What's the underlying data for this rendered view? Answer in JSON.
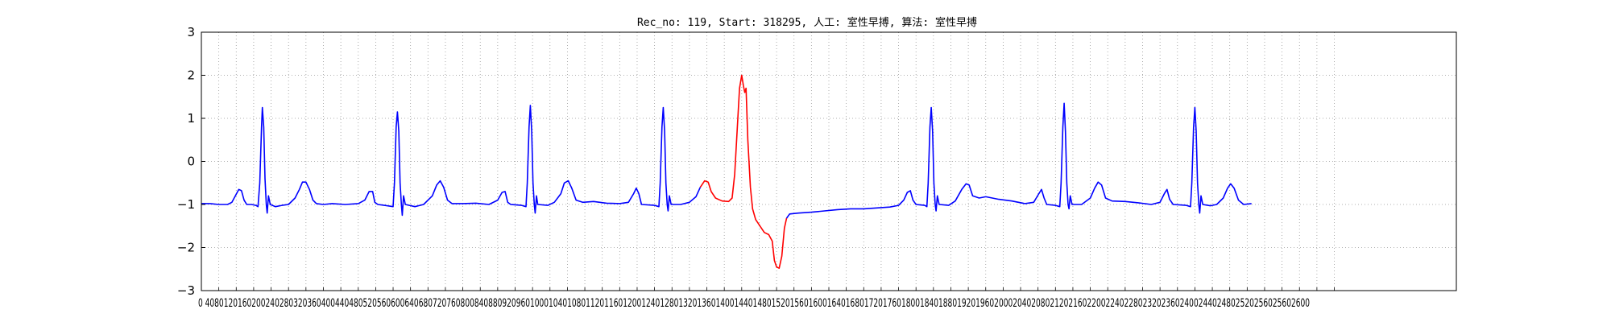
{
  "chart_data": {
    "type": "line",
    "title": "Rec_no: 119, Start: 318295, 人工: 室性早搏, 算法: 室性早搏",
    "xlabel": "",
    "ylabel": "",
    "xlim": [
      0,
      2880
    ],
    "ylim": [
      -3,
      3
    ],
    "grid": true,
    "y_ticks": [
      3,
      2,
      1,
      0,
      -1,
      -2,
      -3
    ],
    "y_tick_labels": [
      "3",
      "2",
      "1",
      "0",
      "−1",
      "−2",
      "−3"
    ],
    "x_tick_step": 40,
    "x_tick_max": 2600,
    "x_tick_labels_text": "0 4080120160200240280320360400440480520560600640680720760800840880920960100010401080112011601200124012801320136014001440148015201560160016401680172017601800184018801920196020002040208021202160220022402280232023602400244024802520256025602600",
    "series": [
      {
        "color": "#0000ff",
        "values": [
          [
            0,
            -0.98
          ],
          [
            20,
            -0.98
          ],
          [
            40,
            -1.0
          ],
          [
            60,
            -1.0
          ],
          [
            70,
            -0.95
          ],
          [
            78,
            -0.8
          ],
          [
            86,
            -0.65
          ],
          [
            92,
            -0.68
          ],
          [
            98,
            -0.9
          ],
          [
            104,
            -1.0
          ],
          [
            115,
            -1.0
          ],
          [
            125,
            -1.02
          ],
          [
            130,
            -1.05
          ],
          [
            134,
            -0.5
          ],
          [
            138,
            0.8
          ],
          [
            140,
            1.25
          ],
          [
            143,
            0.8
          ],
          [
            146,
            -0.4
          ],
          [
            149,
            -1.0
          ],
          [
            151,
            -1.2
          ],
          [
            154,
            -0.8
          ],
          [
            158,
            -1.0
          ],
          [
            170,
            -1.05
          ],
          [
            185,
            -1.02
          ],
          [
            200,
            -1.0
          ],
          [
            215,
            -0.85
          ],
          [
            225,
            -0.65
          ],
          [
            232,
            -0.48
          ],
          [
            240,
            -0.48
          ],
          [
            248,
            -0.65
          ],
          [
            256,
            -0.9
          ],
          [
            264,
            -0.98
          ],
          [
            280,
            -1.0
          ],
          [
            300,
            -0.98
          ],
          [
            330,
            -1.0
          ],
          [
            360,
            -0.98
          ],
          [
            375,
            -0.9
          ],
          [
            385,
            -0.7
          ],
          [
            393,
            -0.7
          ],
          [
            398,
            -0.95
          ],
          [
            405,
            -1.0
          ],
          [
            420,
            -1.02
          ],
          [
            440,
            -1.05
          ],
          [
            443,
            -0.5
          ],
          [
            447,
            0.8
          ],
          [
            450,
            1.15
          ],
          [
            453,
            0.7
          ],
          [
            456,
            -0.5
          ],
          [
            459,
            -1.0
          ],
          [
            461,
            -1.25
          ],
          [
            464,
            -0.8
          ],
          [
            468,
            -1.0
          ],
          [
            490,
            -1.05
          ],
          [
            510,
            -1.0
          ],
          [
            530,
            -0.8
          ],
          [
            540,
            -0.55
          ],
          [
            548,
            -0.45
          ],
          [
            556,
            -0.6
          ],
          [
            565,
            -0.9
          ],
          [
            575,
            -0.98
          ],
          [
            600,
            -0.98
          ],
          [
            630,
            -0.97
          ],
          [
            660,
            -1.0
          ],
          [
            680,
            -0.9
          ],
          [
            690,
            -0.72
          ],
          [
            697,
            -0.7
          ],
          [
            703,
            -0.95
          ],
          [
            710,
            -1.0
          ],
          [
            735,
            -1.02
          ],
          [
            745,
            -1.05
          ],
          [
            748,
            -0.5
          ],
          [
            752,
            0.8
          ],
          [
            755,
            1.3
          ],
          [
            758,
            0.7
          ],
          [
            761,
            -0.5
          ],
          [
            764,
            -1.0
          ],
          [
            766,
            -1.2
          ],
          [
            769,
            -0.8
          ],
          [
            772,
            -1.0
          ],
          [
            795,
            -1.02
          ],
          [
            810,
            -0.95
          ],
          [
            825,
            -0.75
          ],
          [
            833,
            -0.5
          ],
          [
            842,
            -0.45
          ],
          [
            850,
            -0.62
          ],
          [
            860,
            -0.9
          ],
          [
            875,
            -0.95
          ],
          [
            900,
            -0.93
          ],
          [
            930,
            -0.97
          ],
          [
            960,
            -0.98
          ],
          [
            980,
            -0.95
          ],
          [
            992,
            -0.75
          ],
          [
            998,
            -0.62
          ],
          [
            1004,
            -0.75
          ],
          [
            1010,
            -1.0
          ],
          [
            1040,
            -1.02
          ],
          [
            1050,
            -1.05
          ],
          [
            1053,
            -0.5
          ],
          [
            1057,
            0.8
          ],
          [
            1060,
            1.25
          ],
          [
            1063,
            0.7
          ],
          [
            1066,
            -0.5
          ],
          [
            1069,
            -1.0
          ],
          [
            1071,
            -1.15
          ],
          [
            1074,
            -0.8
          ],
          [
            1078,
            -1.0
          ],
          [
            1100,
            -1.0
          ],
          [
            1120,
            -0.95
          ],
          [
            1135,
            -0.82
          ],
          [
            1145,
            -0.6
          ]
        ]
      },
      {
        "color": "#ff0000",
        "values": [
          [
            1145,
            -0.6
          ],
          [
            1155,
            -0.45
          ],
          [
            1163,
            -0.48
          ],
          [
            1170,
            -0.7
          ],
          [
            1180,
            -0.85
          ],
          [
            1195,
            -0.92
          ],
          [
            1210,
            -0.93
          ],
          [
            1218,
            -0.85
          ],
          [
            1224,
            -0.3
          ],
          [
            1230,
            0.8
          ],
          [
            1235,
            1.7
          ],
          [
            1240,
            2.0
          ],
          [
            1244,
            1.75
          ],
          [
            1247,
            1.6
          ],
          [
            1250,
            1.7
          ],
          [
            1254,
            0.5
          ],
          [
            1260,
            -0.6
          ],
          [
            1265,
            -1.1
          ],
          [
            1272,
            -1.35
          ],
          [
            1282,
            -1.5
          ],
          [
            1292,
            -1.65
          ],
          [
            1302,
            -1.7
          ],
          [
            1310,
            -1.85
          ],
          [
            1315,
            -2.3
          ],
          [
            1320,
            -2.45
          ],
          [
            1326,
            -2.48
          ],
          [
            1332,
            -2.2
          ],
          [
            1338,
            -1.55
          ],
          [
            1343,
            -1.32
          ]
        ]
      },
      {
        "color": "#0000ff",
        "values": [
          [
            1343,
            -1.32
          ],
          [
            1350,
            -1.22
          ],
          [
            1370,
            -1.2
          ],
          [
            1400,
            -1.18
          ],
          [
            1430,
            -1.15
          ],
          [
            1460,
            -1.12
          ],
          [
            1490,
            -1.1
          ],
          [
            1520,
            -1.1
          ],
          [
            1550,
            -1.08
          ],
          [
            1580,
            -1.06
          ],
          [
            1600,
            -1.02
          ],
          [
            1612,
            -0.9
          ],
          [
            1620,
            -0.72
          ],
          [
            1627,
            -0.68
          ],
          [
            1633,
            -0.9
          ],
          [
            1640,
            -1.0
          ],
          [
            1660,
            -1.02
          ],
          [
            1665,
            -1.05
          ],
          [
            1668,
            -0.5
          ],
          [
            1672,
            0.8
          ],
          [
            1675,
            1.25
          ],
          [
            1678,
            0.7
          ],
          [
            1681,
            -0.5
          ],
          [
            1684,
            -1.0
          ],
          [
            1686,
            -1.15
          ],
          [
            1689,
            -0.8
          ],
          [
            1693,
            -1.0
          ],
          [
            1715,
            -1.02
          ],
          [
            1730,
            -0.92
          ],
          [
            1745,
            -0.65
          ],
          [
            1755,
            -0.52
          ],
          [
            1762,
            -0.55
          ],
          [
            1770,
            -0.8
          ],
          [
            1785,
            -0.85
          ],
          [
            1800,
            -0.82
          ],
          [
            1830,
            -0.88
          ],
          [
            1860,
            -0.92
          ],
          [
            1890,
            -0.98
          ],
          [
            1910,
            -0.95
          ],
          [
            1922,
            -0.75
          ],
          [
            1928,
            -0.65
          ],
          [
            1934,
            -0.85
          ],
          [
            1940,
            -1.0
          ],
          [
            1960,
            -1.02
          ],
          [
            1970,
            -1.05
          ],
          [
            1973,
            -0.5
          ],
          [
            1977,
            0.8
          ],
          [
            1980,
            1.35
          ],
          [
            1983,
            0.7
          ],
          [
            1986,
            -0.5
          ],
          [
            1989,
            -1.0
          ],
          [
            1991,
            -1.1
          ],
          [
            1994,
            -0.8
          ],
          [
            1998,
            -1.0
          ],
          [
            2020,
            -1.0
          ],
          [
            2040,
            -0.85
          ],
          [
            2050,
            -0.62
          ],
          [
            2058,
            -0.48
          ],
          [
            2066,
            -0.55
          ],
          [
            2075,
            -0.85
          ],
          [
            2090,
            -0.92
          ],
          [
            2120,
            -0.93
          ],
          [
            2150,
            -0.96
          ],
          [
            2180,
            -1.0
          ],
          [
            2200,
            -0.95
          ],
          [
            2210,
            -0.75
          ],
          [
            2216,
            -0.65
          ],
          [
            2222,
            -0.88
          ],
          [
            2230,
            -1.0
          ],
          [
            2260,
            -1.02
          ],
          [
            2270,
            -1.05
          ],
          [
            2273,
            -0.5
          ],
          [
            2277,
            0.8
          ],
          [
            2280,
            1.25
          ],
          [
            2283,
            0.7
          ],
          [
            2286,
            -0.5
          ],
          [
            2289,
            -1.0
          ],
          [
            2291,
            -1.2
          ],
          [
            2294,
            -0.8
          ],
          [
            2298,
            -1.0
          ],
          [
            2315,
            -1.03
          ],
          [
            2330,
            -1.0
          ],
          [
            2345,
            -0.85
          ],
          [
            2355,
            -0.62
          ],
          [
            2362,
            -0.52
          ],
          [
            2370,
            -0.62
          ],
          [
            2380,
            -0.9
          ],
          [
            2392,
            -1.0
          ],
          [
            2410,
            -0.98
          ]
        ]
      }
    ]
  }
}
